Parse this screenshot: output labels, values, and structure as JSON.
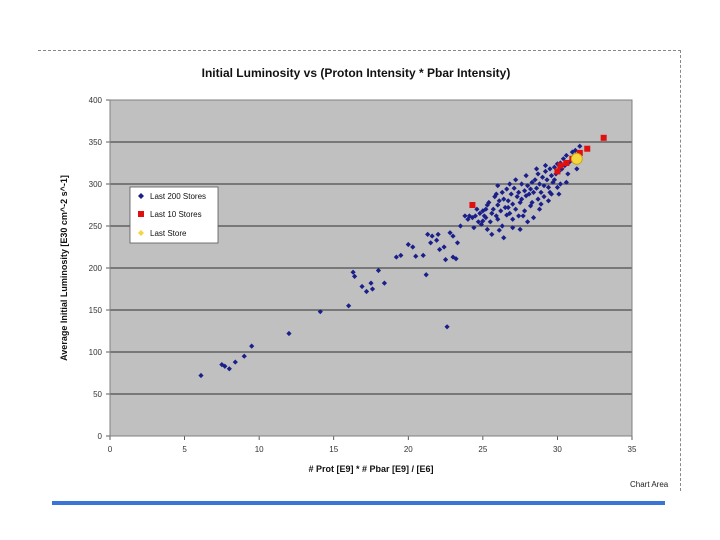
{
  "page": {
    "chart_area_label": "Chart Area"
  },
  "chart_data": {
    "type": "scatter",
    "title": "Initial Luminosity  vs  (Proton Intensity * Pbar Intensity)",
    "xlabel": "# Prot  [E9] * # Pbar [E9] / [E6]",
    "ylabel": "Average Initial Luminosity  [E30 cm^-2 s^-1]",
    "xlim": [
      0,
      35
    ],
    "ylim": [
      0,
      400
    ],
    "xticks": [
      0,
      5,
      10,
      15,
      20,
      25,
      30,
      35
    ],
    "yticks": [
      0,
      50,
      100,
      150,
      200,
      250,
      300,
      350,
      400
    ],
    "grid": true,
    "legend_position": "upper-left",
    "colors": {
      "plot_bg": "#c0c0c0",
      "series_1": "#1a1f8a",
      "series_2": "#e01010",
      "series_3": "#f5d640"
    },
    "series": [
      {
        "name": "Last 200 Stores",
        "marker": "diamond",
        "points": [
          [
            6.1,
            72
          ],
          [
            7.5,
            85
          ],
          [
            7.7,
            83
          ],
          [
            8.0,
            80
          ],
          [
            8.4,
            88
          ],
          [
            9.0,
            95
          ],
          [
            9.5,
            107
          ],
          [
            12.0,
            122
          ],
          [
            14.1,
            148
          ],
          [
            16.0,
            155
          ],
          [
            16.3,
            195
          ],
          [
            16.4,
            190
          ],
          [
            16.9,
            178
          ],
          [
            17.2,
            172
          ],
          [
            17.5,
            182
          ],
          [
            17.6,
            175
          ],
          [
            18.0,
            197
          ],
          [
            18.4,
            182
          ],
          [
            19.2,
            213
          ],
          [
            19.5,
            215
          ],
          [
            20.0,
            228
          ],
          [
            20.3,
            225
          ],
          [
            20.5,
            214
          ],
          [
            21.0,
            215
          ],
          [
            21.5,
            230
          ],
          [
            21.2,
            192
          ],
          [
            21.3,
            240
          ],
          [
            21.6,
            238
          ],
          [
            21.9,
            233
          ],
          [
            22.1,
            222
          ],
          [
            22.0,
            240
          ],
          [
            22.4,
            225
          ],
          [
            22.5,
            210
          ],
          [
            22.6,
            130
          ],
          [
            22.8,
            242
          ],
          [
            23.0,
            238
          ],
          [
            23.3,
            230
          ],
          [
            23.0,
            213
          ],
          [
            23.2,
            211
          ],
          [
            23.5,
            250
          ],
          [
            23.8,
            262
          ],
          [
            24.0,
            258
          ],
          [
            24.3,
            260
          ],
          [
            24.5,
            262
          ],
          [
            24.7,
            255
          ],
          [
            24.8,
            265
          ],
          [
            25.0,
            268
          ],
          [
            25.1,
            262
          ],
          [
            25.2,
            270
          ],
          [
            25.3,
            275
          ],
          [
            25.4,
            278
          ],
          [
            25.6,
            265
          ],
          [
            25.7,
            270
          ],
          [
            25.8,
            285
          ],
          [
            25.9,
            262
          ],
          [
            26.0,
            275
          ],
          [
            26.1,
            280
          ],
          [
            26.2,
            268
          ],
          [
            26.3,
            290
          ],
          [
            26.4,
            282
          ],
          [
            26.5,
            272
          ],
          [
            26.6,
            294
          ],
          [
            26.7,
            280
          ],
          [
            26.8,
            265
          ],
          [
            26.9,
            288
          ],
          [
            27.0,
            276
          ],
          [
            27.1,
            295
          ],
          [
            27.2,
            270
          ],
          [
            27.3,
            285
          ],
          [
            27.4,
            290
          ],
          [
            27.5,
            278
          ],
          [
            27.6,
            300
          ],
          [
            27.7,
            262
          ],
          [
            27.8,
            292
          ],
          [
            27.9,
            286
          ],
          [
            28.0,
            298
          ],
          [
            28.1,
            288
          ],
          [
            28.2,
            294
          ],
          [
            28.3,
            302
          ],
          [
            28.4,
            290
          ],
          [
            28.5,
            305
          ],
          [
            28.6,
            295
          ],
          [
            28.7,
            312
          ],
          [
            28.8,
            300
          ],
          [
            28.9,
            290
          ],
          [
            29.0,
            308
          ],
          [
            29.1,
            298
          ],
          [
            29.2,
            315
          ],
          [
            29.3,
            305
          ],
          [
            29.4,
            296
          ],
          [
            29.5,
            318
          ],
          [
            29.6,
            310
          ],
          [
            29.7,
            302
          ],
          [
            29.8,
            320
          ],
          [
            29.9,
            312
          ],
          [
            30.0,
            324
          ],
          [
            30.1,
            315
          ],
          [
            30.2,
            325
          ],
          [
            30.3,
            318
          ],
          [
            30.4,
            330
          ],
          [
            30.5,
            322
          ],
          [
            30.6,
            334
          ],
          [
            30.8,
            326
          ],
          [
            31.0,
            338
          ],
          [
            31.2,
            340
          ],
          [
            31.5,
            345
          ],
          [
            25.2,
            260
          ],
          [
            25.5,
            255
          ],
          [
            26.0,
            258
          ],
          [
            26.3,
            250
          ],
          [
            26.6,
            263
          ],
          [
            27.0,
            258
          ],
          [
            27.4,
            262
          ],
          [
            27.8,
            268
          ],
          [
            28.2,
            274
          ],
          [
            28.7,
            282
          ],
          [
            29.1,
            285
          ],
          [
            29.6,
            288
          ],
          [
            24.4,
            248
          ],
          [
            24.9,
            252
          ],
          [
            25.3,
            246
          ],
          [
            25.6,
            240
          ],
          [
            26.1,
            245
          ],
          [
            26.4,
            236
          ],
          [
            27.0,
            248
          ],
          [
            27.5,
            246
          ],
          [
            28.0,
            255
          ],
          [
            28.4,
            260
          ],
          [
            28.8,
            270
          ],
          [
            29.4,
            280
          ],
          [
            30.1,
            288
          ],
          [
            26.0,
            298
          ],
          [
            26.8,
            300
          ],
          [
            27.2,
            305
          ],
          [
            27.9,
            310
          ],
          [
            28.6,
            318
          ],
          [
            29.2,
            322
          ],
          [
            29.8,
            305
          ],
          [
            30.2,
            300
          ],
          [
            30.7,
            312
          ],
          [
            31.1,
            328
          ],
          [
            24.1,
            262
          ],
          [
            24.6,
            270
          ],
          [
            25.0,
            256
          ],
          [
            25.9,
            288
          ],
          [
            26.7,
            272
          ],
          [
            27.6,
            282
          ],
          [
            28.3,
            278
          ],
          [
            28.9,
            276
          ],
          [
            29.5,
            290
          ],
          [
            30.0,
            296
          ],
          [
            30.6,
            302
          ],
          [
            31.3,
            318
          ]
        ]
      },
      {
        "name": "Last 10 Stores",
        "marker": "square",
        "points": [
          [
            24.3,
            275
          ],
          [
            30.0,
            315
          ],
          [
            30.2,
            322
          ],
          [
            30.6,
            325
          ],
          [
            31.0,
            330
          ],
          [
            31.5,
            337
          ],
          [
            32.0,
            342
          ],
          [
            33.1,
            355
          ]
        ]
      },
      {
        "name": "Last Store",
        "marker": "circle",
        "points": [
          [
            31.3,
            330
          ]
        ]
      }
    ]
  }
}
